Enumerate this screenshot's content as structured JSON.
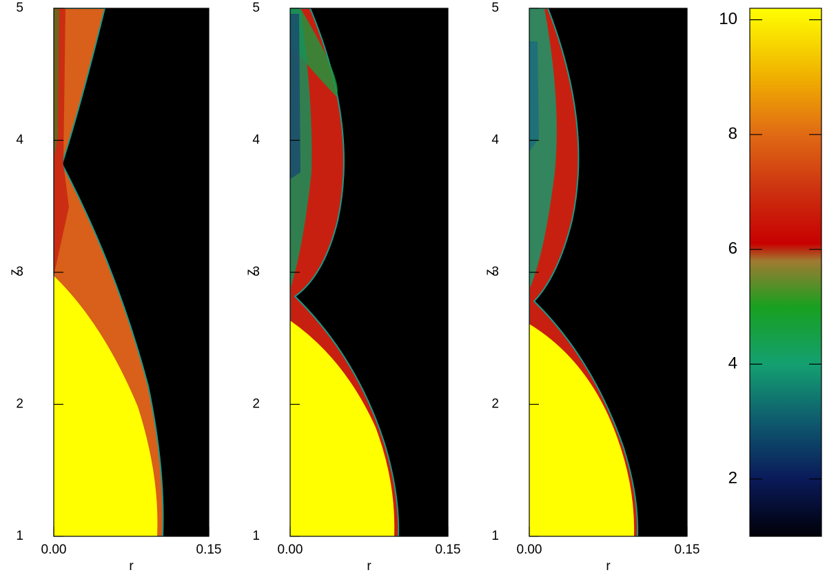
{
  "chart_data": [
    {
      "type": "heatmap",
      "xlabel": "r",
      "ylabel": "z",
      "xlim": [
        0,
        0.15
      ],
      "ylim": [
        1,
        5
      ],
      "xticks": [
        {
          "value": 0,
          "label": "0.00"
        },
        {
          "value": 0.15,
          "label": "0.15"
        }
      ],
      "yticks": [
        1,
        2,
        3,
        4,
        5
      ]
    },
    {
      "type": "heatmap",
      "xlabel": "r",
      "ylabel": "z",
      "xlim": [
        0,
        0.15
      ],
      "ylim": [
        1,
        5
      ],
      "xticks": [
        {
          "value": 0,
          "label": "0.00"
        },
        {
          "value": 0.15,
          "label": "0.15"
        }
      ],
      "yticks": [
        1,
        2,
        3,
        4,
        5
      ]
    },
    {
      "type": "heatmap",
      "xlabel": "r",
      "ylabel": "z",
      "xlim": [
        0,
        0.15
      ],
      "ylim": [
        1,
        5
      ],
      "xticks": [
        {
          "value": 0,
          "label": "0.00"
        },
        {
          "value": 0.15,
          "label": "0.15"
        }
      ],
      "yticks": [
        1,
        2,
        3,
        4,
        5
      ]
    },
    {
      "type": "colorbar",
      "ylim": [
        1,
        10.2
      ],
      "yticks": [
        2,
        4,
        6,
        8,
        10
      ],
      "colorscale": [
        [
          1,
          "#000008"
        ],
        [
          2,
          "#0a1a5a"
        ],
        [
          3,
          "#0e5a6e"
        ],
        [
          4,
          "#14a070"
        ],
        [
          5,
          "#18a020"
        ],
        [
          5.8,
          "#a07a30"
        ],
        [
          6.1,
          "#c80000"
        ],
        [
          7,
          "#cc3010"
        ],
        [
          8,
          "#e06a14"
        ],
        [
          9,
          "#f0b000"
        ],
        [
          10.2,
          "#ffff00"
        ]
      ]
    }
  ]
}
